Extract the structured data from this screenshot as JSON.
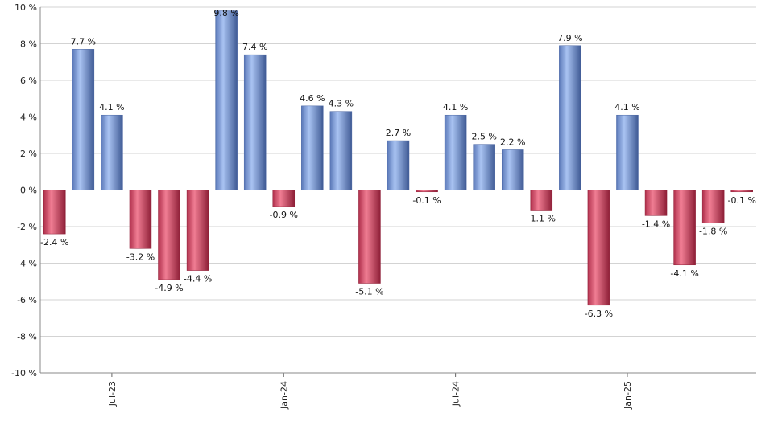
{
  "chart_data": {
    "type": "bar",
    "title": "",
    "xlabel": "",
    "ylabel": "",
    "ylim": [
      -10,
      10
    ],
    "y_ticks": [
      -10,
      -8,
      -6,
      -4,
      -2,
      0,
      2,
      4,
      6,
      8,
      10
    ],
    "y_tick_suffix": " %",
    "value_suffix": " %",
    "grid": true,
    "legend": "none",
    "x_tick_labels": [
      {
        "label": "Jul-23",
        "index": 2
      },
      {
        "label": "Jan-24",
        "index": 8
      },
      {
        "label": "Jul-24",
        "index": 14
      },
      {
        "label": "Jan-25",
        "index": 20
      }
    ],
    "values": [
      -2.4,
      7.7,
      4.1,
      -3.2,
      -4.9,
      -4.4,
      9.8,
      7.4,
      -0.9,
      4.6,
      4.3,
      -5.1,
      2.7,
      -0.1,
      4.1,
      2.5,
      2.2,
      -1.1,
      7.9,
      -6.3,
      4.1,
      -1.4,
      -4.1,
      -1.8,
      -0.1
    ],
    "colors": {
      "positive": "#7f9fd9",
      "negative": "#c93d59"
    }
  }
}
